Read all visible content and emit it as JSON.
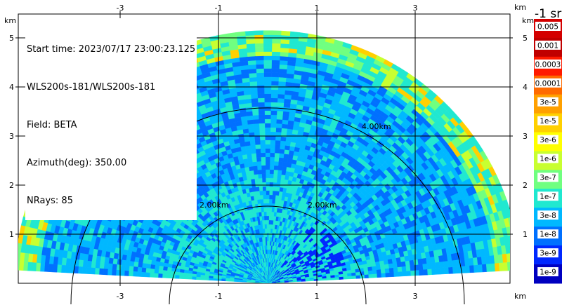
{
  "chart_data": {
    "type": "heatmap",
    "title": "",
    "info_lines": [
      "Start time: 2023/07/17 23:00:23.125",
      "WLS200s-181/WLS200s-181",
      "Field: BETA",
      "Azimuth(deg): 350.00",
      "NRays: 85"
    ],
    "x_unit_label": "km",
    "y_unit_label": "km",
    "xlim": [
      -4.0,
      4.0
    ],
    "ylim": [
      0.0,
      5.7
    ],
    "x_ticks": [
      -3,
      -1,
      1,
      3
    ],
    "x_tick_labels": [
      "-3",
      "-1",
      "1",
      "3"
    ],
    "y_ticks": [
      1,
      2,
      3,
      4,
      5
    ],
    "y_tick_labels": [
      "1",
      "2",
      "3",
      "4",
      "5"
    ],
    "grid": true,
    "range_rings": [
      {
        "radius_km": 2.0,
        "label": "2.00km"
      },
      {
        "radius_km": 4.0,
        "label": "4.00km"
      }
    ],
    "scan": {
      "elevation_min_deg": 3,
      "elevation_max_deg": 177,
      "range_max_km": 5.15,
      "banding": [
        {
          "range_km": [
            0.0,
            2.2
          ],
          "level_index": 7
        },
        {
          "range_km": [
            2.2,
            3.8
          ],
          "level_index": 6
        },
        {
          "range_km": [
            3.8,
            4.6
          ],
          "level_index": 6
        },
        {
          "range_km": [
            4.6,
            5.15
          ],
          "level_index": 9
        }
      ]
    },
    "colorbar": {
      "title": "-1 sr",
      "labels": [
        "0.005",
        "0.001",
        "0.0003",
        "0.0001",
        "3e-5",
        "1e-5",
        "3e-6",
        "1e-6",
        "3e-7",
        "1e-7",
        "3e-8",
        "1e-8",
        "3e-9",
        "1e-9"
      ],
      "colors": [
        "#d40000",
        "#c00000",
        "#ff1a00",
        "#ff6a00",
        "#ffa000",
        "#ffd000",
        "#ffff00",
        "#c8ff30",
        "#70ff80",
        "#20e8d0",
        "#00b8ff",
        "#0070ff",
        "#0028ff",
        "#0000c0"
      ]
    }
  }
}
